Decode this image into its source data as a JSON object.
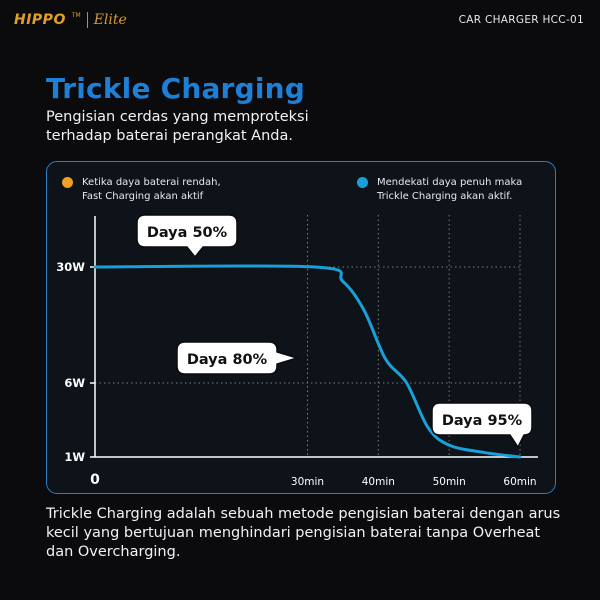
{
  "brand": {
    "name": "HIPPO",
    "trademark": "TM",
    "sub_brand": "Elite",
    "accent": "#e0a024"
  },
  "model": "CAR CHARGER HCC-01",
  "title": "Trickle Charging",
  "subtitle": "Pengisian cerdas yang memproteksi terhadap baterai perangkat Anda.",
  "legend": [
    {
      "text": "Ketika daya baterai rendah,\nFast Charging akan aktif",
      "color": "#f0a022",
      "position": "top-left"
    },
    {
      "text": "Mendekati daya penuh maka\nTrickle Charging akan aktif.",
      "color": "#1aa0d8",
      "position": "top-right"
    }
  ],
  "footer": "Trickle Charging adalah sebuah metode pengisian baterai dengan arus kecil yang bertujuan menghindari pengisian baterai tanpa Overheat dan Overcharging.",
  "chart_data": {
    "type": "line",
    "title": "",
    "xlabel": "",
    "ylabel": "",
    "x_ticks": [
      {
        "value": 0,
        "label": "0"
      },
      {
        "value": 30,
        "label": "30min"
      },
      {
        "value": 40,
        "label": "40min"
      },
      {
        "value": 50,
        "label": "50min"
      },
      {
        "value": 60,
        "label": "60min"
      }
    ],
    "y_ticks": [
      {
        "value": 1,
        "label": "1W"
      },
      {
        "value": 6,
        "label": "6W"
      },
      {
        "value": 30,
        "label": "30W"
      }
    ],
    "series": [
      {
        "color": "#1aa0d8",
        "points": [
          {
            "x": 0,
            "y": 30
          },
          {
            "x": 31,
            "y": 30
          },
          {
            "x": 35,
            "y": 27
          },
          {
            "x": 38,
            "y": 21
          },
          {
            "x": 41,
            "y": 11
          },
          {
            "x": 44,
            "y": 6
          },
          {
            "x": 47,
            "y": 3
          },
          {
            "x": 50,
            "y": 1.8
          },
          {
            "x": 55,
            "y": 1.3
          },
          {
            "x": 60,
            "y": 1
          }
        ]
      }
    ],
    "annotations": [
      {
        "text": "Daya 50%",
        "x": 31,
        "y": 30
      },
      {
        "text": "Daya 80%",
        "x": 40,
        "y": 14
      },
      {
        "text": "Daya 95%",
        "x": 60,
        "y": 1
      }
    ],
    "grid": "dotted"
  }
}
